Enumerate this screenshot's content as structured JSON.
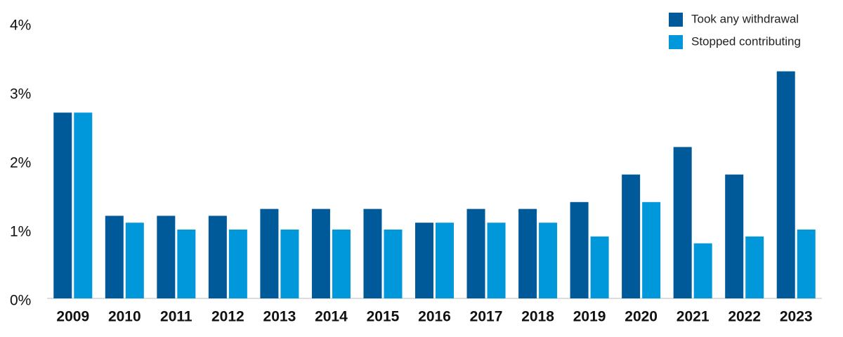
{
  "chart_data": {
    "type": "bar",
    "categories": [
      "2009",
      "2010",
      "2011",
      "2012",
      "2013",
      "2014",
      "2015",
      "2016",
      "2017",
      "2018",
      "2019",
      "2020",
      "2021",
      "2022",
      "2023"
    ],
    "series": [
      {
        "name": "Took any withdrawal",
        "color": "#005a9a",
        "values": [
          2.7,
          1.2,
          1.2,
          1.2,
          1.3,
          1.3,
          1.3,
          1.1,
          1.3,
          1.3,
          1.4,
          1.8,
          2.2,
          1.8,
          3.3
        ]
      },
      {
        "name": "Stopped contributing",
        "color": "#0098db",
        "values": [
          2.7,
          1.1,
          1.0,
          1.0,
          1.0,
          1.0,
          1.0,
          1.1,
          1.1,
          1.1,
          0.9,
          1.4,
          0.8,
          0.9,
          1.0
        ]
      }
    ],
    "ylim": [
      0,
      4
    ],
    "yticks": [
      {
        "value": 0,
        "label": "0%"
      },
      {
        "value": 1,
        "label": "1%"
      },
      {
        "value": 2,
        "label": "2%"
      },
      {
        "value": 3,
        "label": "3%"
      },
      {
        "value": 4,
        "label": "4%"
      }
    ],
    "legend": "top-right"
  }
}
